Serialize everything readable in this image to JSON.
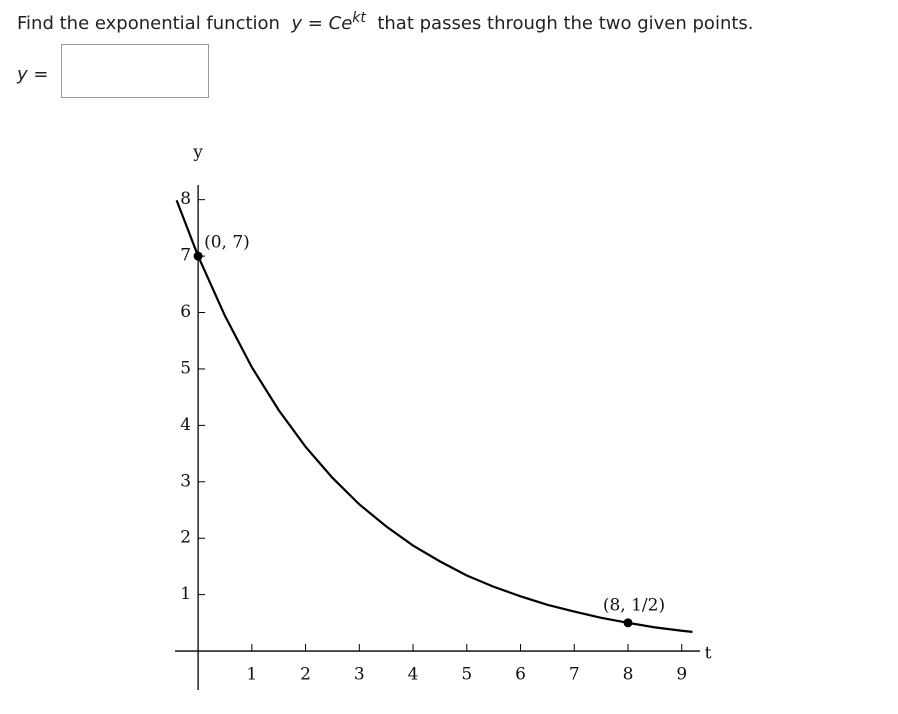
{
  "question": {
    "prefix": "Find the exponential function",
    "formula": {
      "lhs": "y",
      "eq": "=",
      "base": "Ce",
      "exponent": "kt"
    },
    "suffix": "that passes through the two given points."
  },
  "answer": {
    "lhs": "y",
    "eq": "="
  },
  "chart_data": {
    "type": "line",
    "x_label": "t",
    "y_label": "y",
    "color": "#000000",
    "x": [
      -0.4,
      0,
      0.5,
      1,
      1.5,
      2,
      2.5,
      3,
      3.5,
      4,
      4.5,
      5,
      5.5,
      6,
      6.5,
      7,
      7.5,
      8,
      8.5,
      9,
      9.2
    ],
    "values": [
      7.99,
      7,
      5.94,
      5.03,
      4.27,
      3.62,
      3.07,
      2.6,
      2.21,
      1.87,
      1.59,
      1.34,
      1.14,
      0.97,
      0.82,
      0.7,
      0.59,
      0.5,
      0.42,
      0.36,
      0.34
    ],
    "points": {
      "x": [
        0,
        8
      ],
      "values": [
        7,
        0.5
      ],
      "value_labels": [
        "(0, 7)",
        "(8, 1/2)"
      ]
    },
    "xlim": [
      -0.43,
      9.34
    ],
    "ylim": [
      -0.69,
      8.26
    ],
    "xticks": [
      1,
      2,
      3,
      4,
      5,
      6,
      7,
      8,
      9
    ],
    "yticks": [
      1,
      2,
      3,
      4,
      5,
      6,
      7,
      8
    ]
  }
}
